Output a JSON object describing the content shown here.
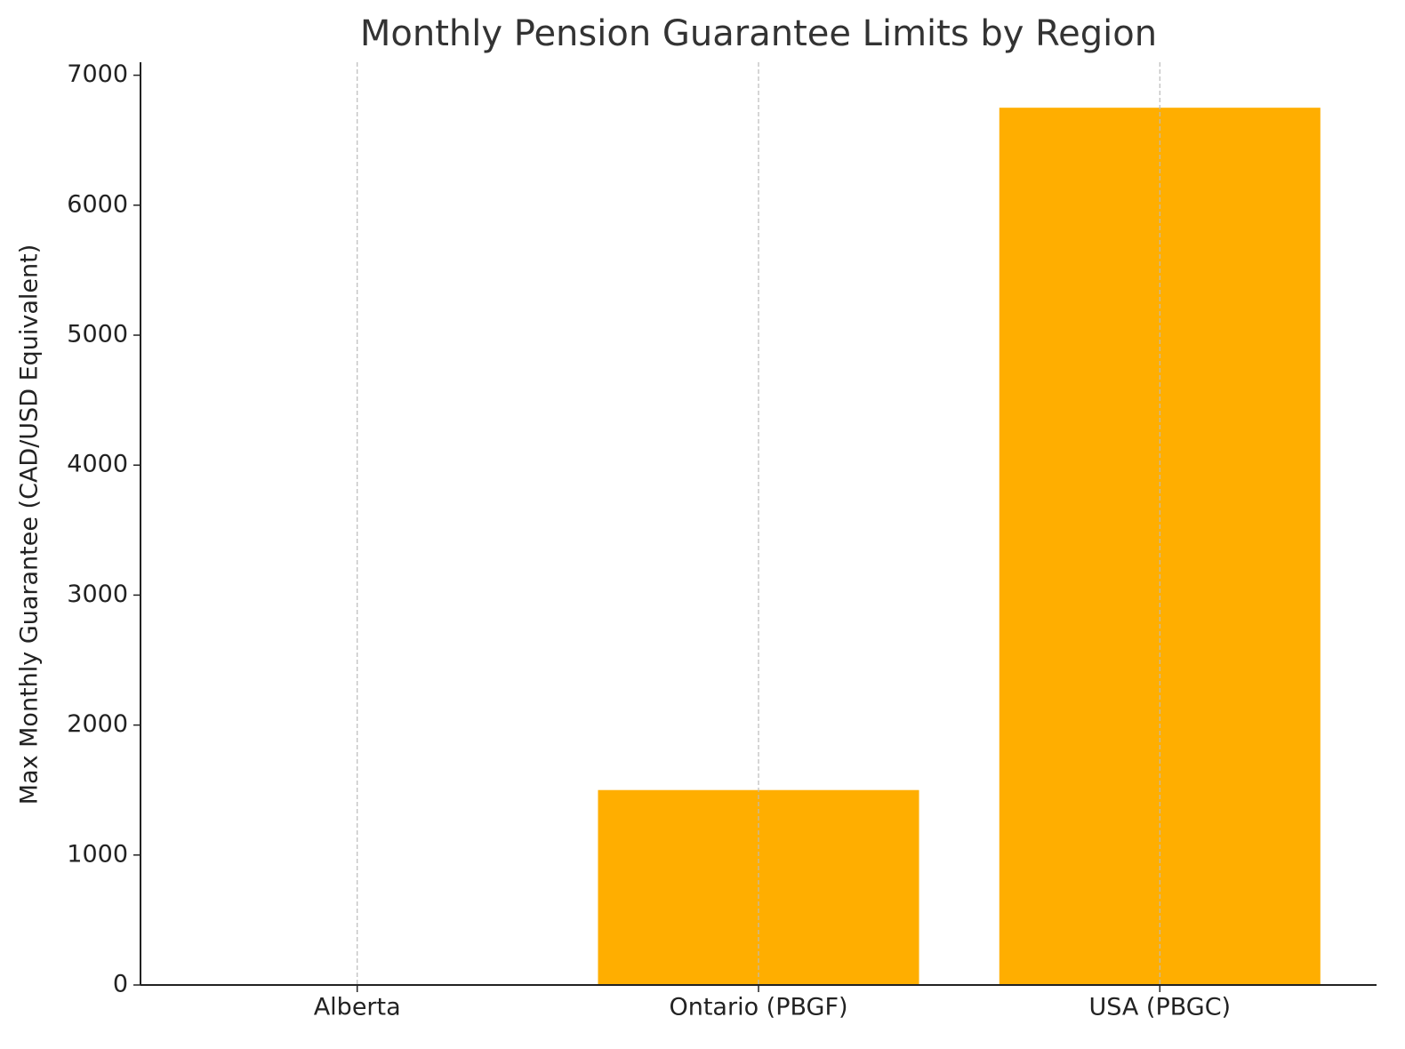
{
  "chart_data": {
    "type": "bar",
    "title": "Monthly Pension Guarantee Limits by Region",
    "y_label": "Max Monthly Guarantee (CAD/USD Equivalent)",
    "categories": [
      "Alberta",
      "Ontario (PBGF)",
      "USA (PBGC)"
    ],
    "values": [
      0,
      1500,
      6750
    ],
    "color": "#ffae00",
    "ylim": [
      0,
      7100
    ],
    "yticks": [
      0,
      1000,
      2000,
      3000,
      4000,
      5000,
      6000,
      7000
    ],
    "grid": "x"
  }
}
